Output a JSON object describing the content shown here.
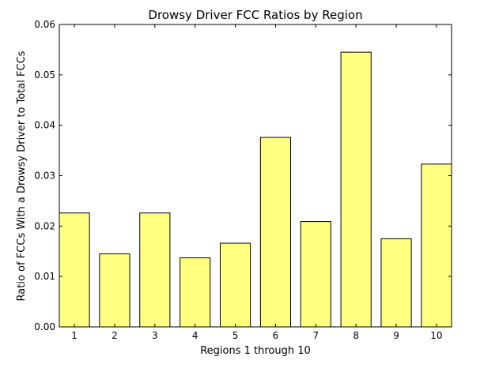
{
  "chart_data": {
    "type": "bar",
    "title": "Drowsy Driver FCC Ratios by Region",
    "xlabel": "Regions 1 through 10",
    "ylabel": "Ratio of FCCs With a Drowsy Driver to Total FCCs",
    "categories": [
      "1",
      "2",
      "3",
      "4",
      "5",
      "6",
      "7",
      "8",
      "9",
      "10"
    ],
    "values": [
      0.0226,
      0.0145,
      0.0226,
      0.0137,
      0.0166,
      0.0376,
      0.0209,
      0.0545,
      0.0175,
      0.0323
    ],
    "ylim": [
      0,
      0.06
    ],
    "yticks": [
      "0.00",
      "0.01",
      "0.02",
      "0.03",
      "0.04",
      "0.05",
      "0.06"
    ],
    "grid": false,
    "bar_color": "#ffff80",
    "edge_color": "#000000"
  }
}
